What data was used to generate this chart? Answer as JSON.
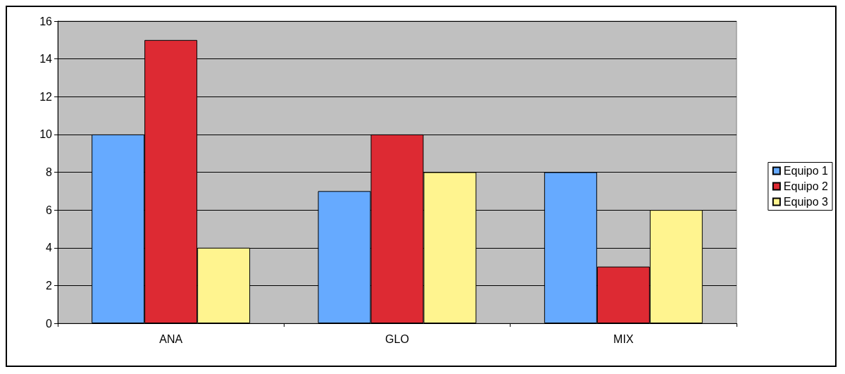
{
  "chart_data": {
    "type": "bar",
    "categories": [
      "ANA",
      "GLO",
      "MIX"
    ],
    "series": [
      {
        "name": "Equipo 1",
        "color": "#66aaff",
        "values": [
          10,
          7,
          8
        ]
      },
      {
        "name": "Equipo 2",
        "color": "#dd2a33",
        "values": [
          15,
          10,
          3
        ]
      },
      {
        "name": "Equipo 3",
        "color": "#fff48f",
        "values": [
          4,
          8,
          6
        ]
      }
    ],
    "ylim": [
      0,
      16
    ],
    "yticks": [
      0,
      2,
      4,
      6,
      8,
      10,
      12,
      14,
      16
    ],
    "grid": "y",
    "legend": "right"
  }
}
